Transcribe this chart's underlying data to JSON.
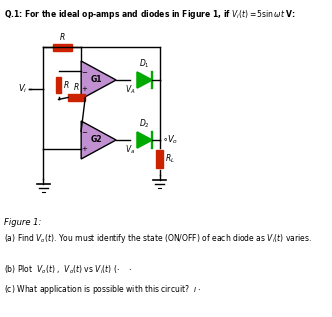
{
  "background_color": "#ffffff",
  "fig_width": 3.32,
  "fig_height": 3.17,
  "dpi": 100,
  "title": "Q.1: For the ideal op-amps and diodes in Figure 1, if $V_i(t) = 5\\sin\\omega t$ V:",
  "fig_label": "Figure 1:",
  "part_a": "(a) Find $V_o(t)$. You must identify the state (ON/OFF) of each diode as $V_i(t)$ varies.",
  "part_b": "(b) Plot  $V_o(t)$ ,  $V_o(t)$ vs $V_i(t)$ ($\\cdot$    $\\cdot$",
  "part_c": "(c) What application is possible with this circuit?  $\\imath$ $\\cdot$",
  "opamp_color": "#c090d0",
  "resistor_color": "#cc2200",
  "diode_color": "#00aa00",
  "wire_color": "#000000"
}
